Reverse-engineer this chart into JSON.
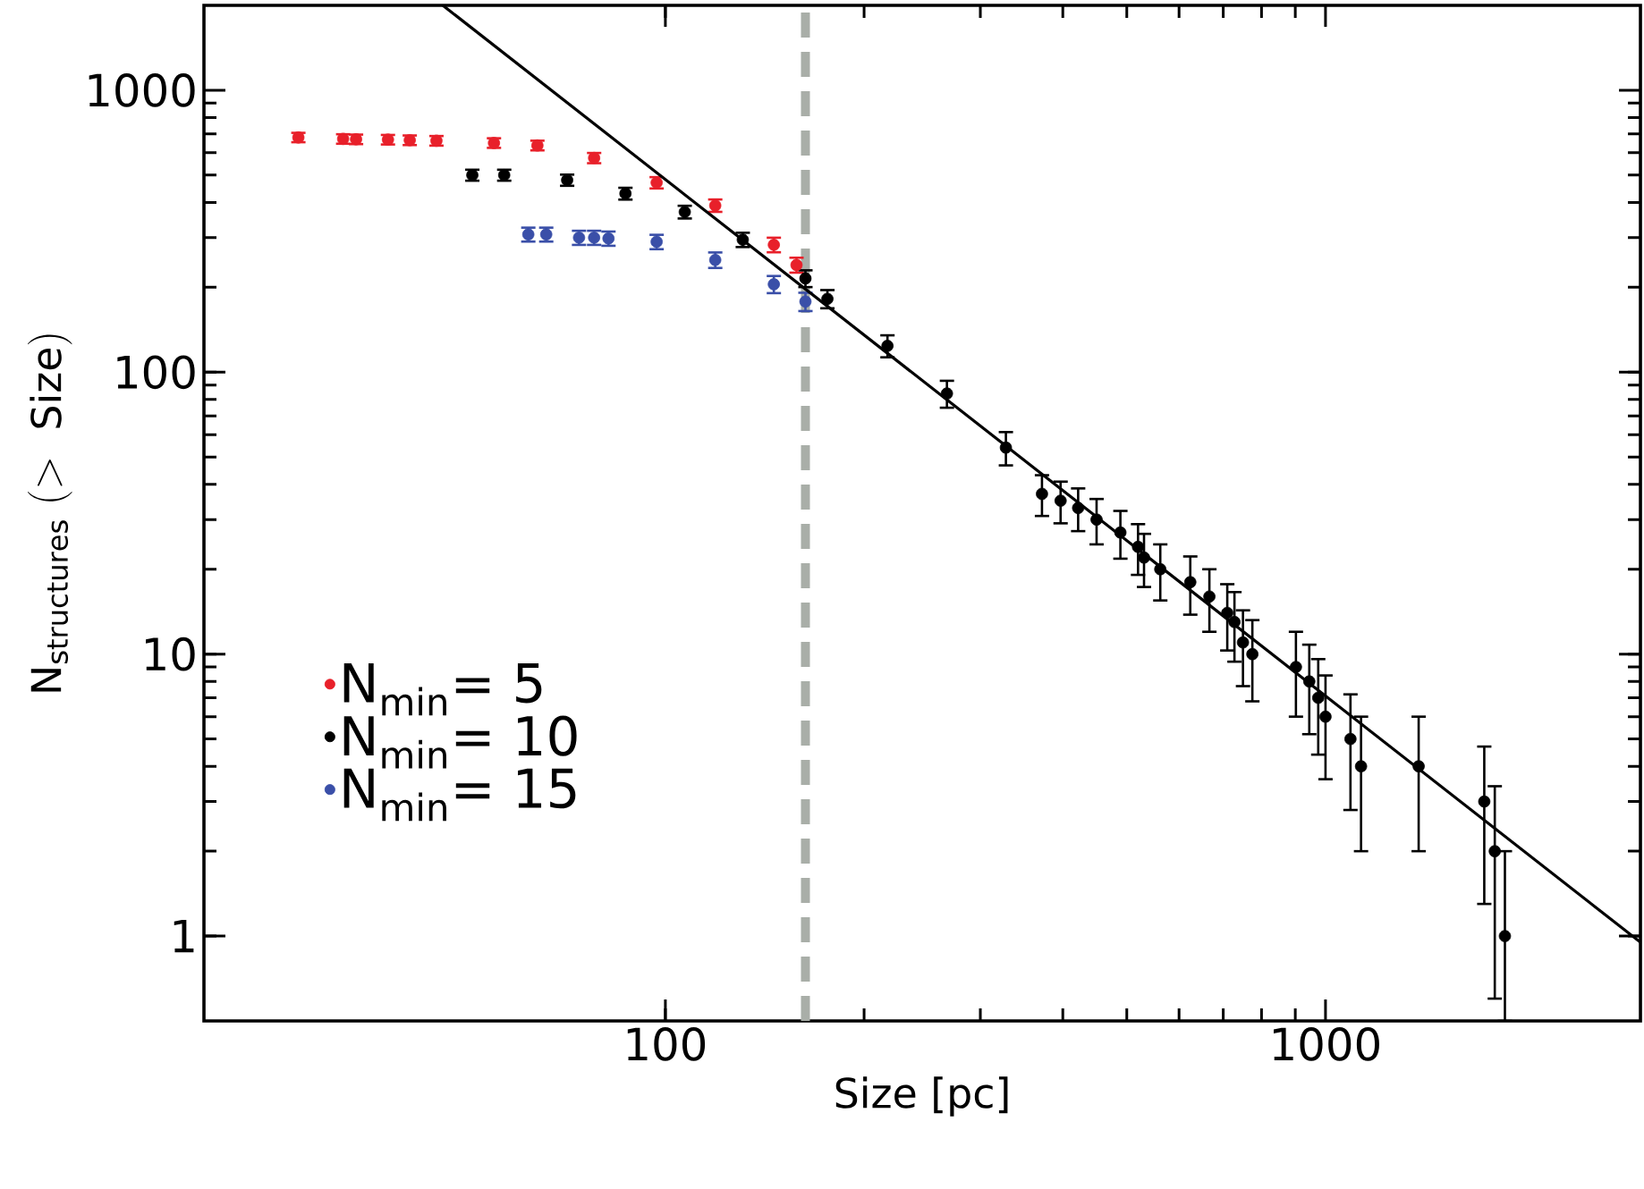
{
  "chart_data": {
    "type": "scatter",
    "xlabel": "Size [pc]",
    "ylabel": "\\mathrm{N_{structures}}\\ (>\\ \\mathrm{Size})",
    "log": "xy",
    "xlim": [
      20,
      3000
    ],
    "ylim": [
      0.5,
      2000
    ],
    "xticks": [
      100,
      1000
    ],
    "yticks": [
      1,
      10,
      100,
      1000
    ],
    "marker": "circle",
    "legend": "bottom left",
    "grid": false,
    "series": [
      {
        "name": "N$_{min}$= 5",
        "color": "#e8202a",
        "x": [
          27.8,
          32.5,
          34,
          38,
          41,
          45,
          55,
          64,
          78,
          97,
          119,
          146,
          158
        ],
        "values": [
          680,
          672,
          670,
          668,
          665,
          662,
          650,
          637,
          575,
          470,
          390,
          283,
          240
        ],
        "errors": [
          26,
          26,
          26,
          26,
          26,
          26,
          25.5,
          25.2,
          24,
          21.7,
          19.7,
          16.8,
          14.6
        ]
      },
      {
        "name": "N$_{min}$= 10",
        "color": "#000000",
        "x": [
          51,
          57,
          71,
          87,
          107,
          131,
          163,
          176,
          217,
          267,
          328,
          372,
          397,
          422,
          450,
          489,
          520,
          531,
          562,
          624,
          667,
          710,
          728,
          750,
          775,
          902,
          945,
          975,
          1000,
          1091,
          1132,
          1384,
          1740,
          1805,
          1870
        ],
        "values": [
          500,
          500,
          480,
          430,
          370,
          295,
          215,
          182,
          124,
          84,
          54,
          37,
          35,
          33,
          30,
          27,
          24,
          22,
          20,
          18,
          16,
          14,
          13,
          11,
          10,
          9,
          8,
          7,
          6,
          5,
          4,
          4,
          3,
          2,
          1
        ],
        "errors": [
          22.4,
          22.4,
          21.9,
          20.7,
          19.2,
          17.2,
          14.7,
          13.5,
          11.1,
          9.2,
          7.3,
          6.1,
          5.9,
          5.7,
          5.5,
          5.2,
          4.9,
          4.7,
          4.5,
          4.2,
          4,
          3.7,
          3.6,
          3.3,
          3.2,
          3,
          2.8,
          2.6,
          2.4,
          2.2,
          2,
          2,
          1.7,
          1.4,
          [
            0.5,
            2
          ]
        ]
      },
      {
        "name": "N$_{min}$= 15",
        "color": "#3a4fa8",
        "x": [
          62,
          66,
          74,
          78,
          82,
          97,
          119,
          146,
          163
        ],
        "values": [
          308,
          308,
          300,
          300,
          298,
          290,
          250,
          205,
          178
        ],
        "errors": [
          17.5,
          17.5,
          17.3,
          17.3,
          17.3,
          17,
          15.8,
          14.3,
          13.3
        ]
      },
      {
        "type": "line",
        "marker": "none",
        "color": "#000000",
        "x": [
          46,
          3000
        ],
        "values": [
          2000,
          0.95
        ]
      }
    ],
    "ref_lines": [
      {
        "axis": "x",
        "value": 163,
        "color": "#a9aea8",
        "line_style": "dashed"
      }
    ]
  }
}
